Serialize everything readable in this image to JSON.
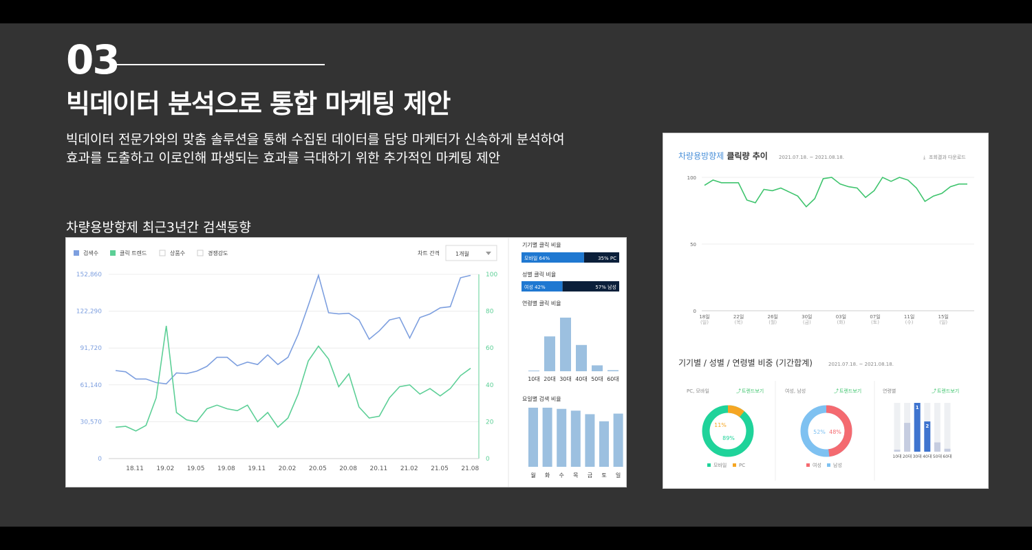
{
  "slide": {
    "number": "03",
    "title": "빅데이터 분석으로 통합 마케팅 제안",
    "desc_line1": "빅데이터 전문가와의 맞춤 솔루션을 통해 수집된 데이터를 담당 마케터가 신속하게 분석하여",
    "desc_line2": "효과를 도출하고 이로인해 파생되는 효과를 극대하기 위한 추가적인 마케팅 제안",
    "subtitle": "차량용방향제 최근3년간 검색동향"
  },
  "trend": {
    "legend": [
      "검색수",
      "클릭 트렌드",
      "상품수",
      "경쟁강도"
    ],
    "interval_label": "차트 간격",
    "interval_value": "1개월",
    "colors": {
      "search": "#7d9fdf",
      "click": "#5ccf96",
      "grid": "#e6e6e6"
    },
    "chart_data": {
      "type": "line",
      "x_ticks": [
        "18.11",
        "19.02",
        "19.05",
        "19.08",
        "19.11",
        "20.02",
        "20.05",
        "20.08",
        "20.11",
        "21.02",
        "21.05",
        "21.08"
      ],
      "y_left_ticks": [
        "0",
        "30,570",
        "61,140",
        "91,720",
        "122,290",
        "152,860"
      ],
      "y_right_ticks": [
        "0",
        "20",
        "40",
        "60",
        "80",
        "100"
      ],
      "ylim_left": [
        0,
        152860
      ],
      "ylim_right": [
        0,
        100
      ],
      "series": [
        {
          "name": "검색수",
          "axis": "left",
          "values": [
            73000,
            72000,
            66000,
            66000,
            63000,
            62000,
            71000,
            70500,
            72500,
            76500,
            84000,
            84000,
            77000,
            80000,
            78000,
            86000,
            78000,
            84000,
            103000,
            127000,
            152000,
            121000,
            120000,
            120500,
            115000,
            99000,
            106000,
            115000,
            117000,
            100000,
            117000,
            120000,
            125000,
            126000,
            150000,
            152000
          ]
        },
        {
          "name": "클릭 트렌드",
          "axis": "right",
          "values": [
            17,
            17.5,
            15,
            18,
            33,
            72,
            25,
            21,
            20,
            27,
            29,
            27,
            26,
            29,
            20,
            25,
            17,
            22,
            35,
            53,
            61,
            54,
            39,
            46,
            28,
            22,
            23,
            33,
            39,
            40,
            35,
            38,
            34,
            38,
            45,
            49
          ]
        }
      ]
    },
    "side": {
      "device_title": "기기별 클릭 비율",
      "device_mobile": "모바일 64%",
      "device_pc": "35% PC",
      "device_mobile_share": 0.64,
      "gender_title": "성별 클릭 비율",
      "gender_female": "여성 42%",
      "gender_male": "57% 남성",
      "gender_female_share": 0.42,
      "age_title": "연령별 클릭 비율",
      "age_chart": {
        "type": "bar",
        "categories": [
          "10대",
          "20대",
          "30대",
          "40대",
          "50대",
          "60대"
        ],
        "values": [
          1,
          65,
          100,
          49,
          11,
          2
        ]
      },
      "weekday_title": "요일별 검색 비율",
      "weekday_chart": {
        "type": "bar",
        "categories": [
          "월",
          "화",
          "수",
          "목",
          "금",
          "토",
          "일"
        ],
        "values": [
          100,
          100,
          98,
          95,
          89,
          77,
          90
        ]
      }
    }
  },
  "click": {
    "title_brand": "차량용방향제",
    "title_rest": " 클릭량 추이",
    "period": "2021.07.18. ~ 2021.08.18.",
    "download": "조회결과 다운로드",
    "colors": {
      "line": "#3ec46d",
      "grid": "#eeeeee"
    },
    "chart_data": {
      "type": "line",
      "y_ticks": [
        "0",
        "50",
        "100"
      ],
      "ylim": [
        0,
        100
      ],
      "x_ticks": [
        {
          "day": "18일",
          "dow": "(일)"
        },
        {
          "day": "22일",
          "dow": "(목)"
        },
        {
          "day": "26일",
          "dow": "(월)"
        },
        {
          "day": "30일",
          "dow": "(금)"
        },
        {
          "day": "03일",
          "dow": "(화)"
        },
        {
          "day": "07일",
          "dow": "(토)"
        },
        {
          "day": "11일",
          "dow": "(수)"
        },
        {
          "day": "15일",
          "dow": "(일)"
        }
      ],
      "values": [
        94,
        98,
        96,
        96,
        96,
        83,
        81,
        91,
        90,
        92,
        89,
        86,
        78,
        84,
        99,
        100,
        95,
        93,
        92,
        85,
        90,
        100,
        97,
        100,
        98,
        92,
        82,
        86,
        88,
        93,
        95,
        95
      ]
    },
    "share_title": "기기별 / 성별 / 연령별 비중 (기간합계)",
    "share_period": "2021.07.18. ~ 2021.08.18.",
    "trend_link": "트렌드보기",
    "device": {
      "title": "PC, 모바일",
      "pc_label": "11%",
      "mobile_label": "89%",
      "pc_share": 0.11,
      "legend": [
        "모바일",
        "PC"
      ],
      "colors": [
        "#1fd39a",
        "#f5a623"
      ]
    },
    "gender": {
      "title": "여성, 남성",
      "male_label": "52%",
      "female_label": "48%",
      "female_share": 0.48,
      "legend": [
        "여성",
        "남성"
      ],
      "colors": [
        "#f46a70",
        "#7ec1f1"
      ]
    },
    "age": {
      "title": "연령별",
      "chart_data": {
        "type": "bar",
        "categories": [
          "10대",
          "20대",
          "30대",
          "40대",
          "50대",
          "60대"
        ],
        "values": [
          4,
          59,
          100,
          62,
          19,
          6
        ]
      },
      "labels": [
        "",
        "",
        "1",
        "2",
        "",
        ""
      ],
      "colors": {
        "bg": "#eef0f3",
        "bar": "#c6cde0",
        "top": "#3f74cf"
      }
    }
  }
}
